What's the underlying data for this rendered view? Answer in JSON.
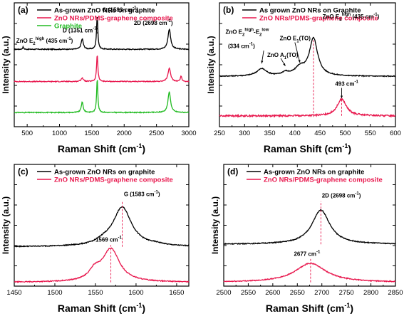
{
  "chart_data": [
    {
      "type": "line",
      "panel_label": "(a)",
      "xlabel": "Raman Shift (cm-1)",
      "ylabel": "Intensity (a.u.)",
      "xlim": [
        300,
        3000
      ],
      "xticks": [
        500,
        1000,
        1500,
        2000,
        2500,
        3000
      ],
      "legend_position": "top-left",
      "series": [
        {
          "name": "As-grown ZnO NRs on graphite",
          "color": "#000000",
          "offset": 3.0,
          "peaks": [
            [
              437,
              0.09,
              10
            ],
            [
              1351,
              0.4,
              20
            ],
            [
              1583,
              1.32,
              12
            ],
            [
              2698,
              0.78,
              25
            ]
          ]
        },
        {
          "name": "ZnO NRs/PDMS-graphene composite",
          "color": "#e8174d",
          "offset": 1.75,
          "peaks": [
            [
              1350,
              0.14,
              20
            ],
            [
              1583,
              1.04,
              12
            ],
            [
              2698,
              0.5,
              25
            ],
            [
              2880,
              0.22,
              12
            ]
          ]
        },
        {
          "name": "Graphite",
          "color": "#22bb22",
          "offset": 0.55,
          "peaks": [
            [
              1351,
              0.4,
              18
            ],
            [
              1583,
              1.33,
              11
            ],
            [
              2698,
              0.8,
              24
            ]
          ]
        }
      ],
      "annotations": [
        {
          "text": "ZnO E",
          "sub": "2",
          "sup": "high",
          "suffix": " (435 cm",
          "sup2": "-1",
          "tail": ")",
          "x": 330,
          "yv": 3.25
        },
        {
          "text": "D (1351 cm",
          "sup": "-1",
          "suffix": ")",
          "x": 1050,
          "yv": 3.65
        },
        {
          "text": "G (1583 cm",
          "sup": "-1",
          "suffix": ")",
          "x": 1660,
          "yv": 4.45
        },
        {
          "text": "2D (2698 cm",
          "sup": "-1",
          "suffix": ")",
          "x": 2150,
          "yv": 3.95
        }
      ],
      "ylim": [
        0,
        4.8
      ]
    },
    {
      "type": "line",
      "panel_label": "(b)",
      "xlabel": "Raman Shift (cm-1)",
      "ylabel": "Intensity (a.u.)",
      "xlim": [
        250,
        600
      ],
      "xticks": [
        250,
        300,
        350,
        400,
        450,
        500,
        550,
        600
      ],
      "legend_position": "top-left",
      "series": [
        {
          "name": "As grown ZnO NRs on Graphite",
          "color": "#000000",
          "offset": 1.95,
          "peaks": [
            [
              334,
              0.28,
              12
            ],
            [
              381,
              0.12,
              8
            ],
            [
              410,
              0.3,
              12
            ],
            [
              437,
              1.45,
              10
            ]
          ]
        },
        {
          "name": "ZnO NRs/PDMS-graphene composite",
          "color": "#e8174d",
          "offset": 0.42,
          "peaks": [
            [
              493,
              0.65,
              11
            ]
          ],
          "noise": 0.06
        }
      ],
      "annotations": [
        {
          "text": "ZnO E",
          "sub": "2",
          "sup": "high",
          "suffix": "-E",
          "sub2": "2",
          "sup2": "low",
          "x": 262,
          "yv": 3.6
        },
        {
          "text": "(334 cm",
          "sup": "-1",
          "suffix": ")",
          "x": 267,
          "yv": 3.05
        },
        {
          "text": "ZnO A",
          "sub": "1",
          "suffix": "(TO)",
          "x": 345,
          "yv": 2.7
        },
        {
          "text": "ZnO E",
          "sub": "1",
          "suffix": "(TO)",
          "x": 370,
          "yv": 3.35
        },
        {
          "text": "ZnO E",
          "sub": "2",
          "sup": "high",
          "suffix": " (435 cm",
          "sup2": "-1",
          "tail": ")",
          "x": 455,
          "yv": 4.2
        },
        {
          "text": "493 cm",
          "sup": "-1",
          "x": 480,
          "yv": 1.58
        }
      ],
      "vlines": [
        {
          "x": 437,
          "from": 0.38,
          "to": 3.4
        },
        {
          "x": 493,
          "from": 0.42,
          "to": 1.05
        }
      ],
      "ylim": [
        0,
        4.8
      ]
    },
    {
      "type": "line",
      "panel_label": "(c)",
      "xlabel": "Raman Shift (cm-1)",
      "ylabel": "Intensity (a.u.)",
      "xlim": [
        1450,
        1665
      ],
      "xticks": [
        1450,
        1500,
        1550,
        1600,
        1650
      ],
      "legend_position": "top-left",
      "series": [
        {
          "name": "As-grown ZnO NRs on graphite",
          "color": "#000000",
          "offset": 1.55,
          "peaks": [
            [
              1583,
              1.55,
              14
            ],
            [
              1560,
              0.12,
              10
            ],
            [
              1625,
              0.05,
              10
            ]
          ]
        },
        {
          "name": "ZnO NRs/PDMS-graphene composite",
          "color": "#e8174d",
          "offset": 0.15,
          "peaks": [
            [
              1569,
              1.3,
              13
            ],
            [
              1549,
              0.35,
              8
            ]
          ]
        }
      ],
      "annotations": [
        {
          "text": "G (1583 cm",
          "sup": "-1",
          "suffix": ")",
          "x": 1585,
          "yv": 3.55
        },
        {
          "text": "1569 cm",
          "sup": "-1",
          "x": 1550,
          "yv": 1.75
        }
      ],
      "vlines": [
        {
          "x": 1583,
          "from": 1.55,
          "to": 3.35
        },
        {
          "x": 1569,
          "from": 0.15,
          "to": 1.62
        }
      ],
      "ylim": [
        0,
        4.8
      ]
    },
    {
      "type": "line",
      "panel_label": "(d)",
      "xlabel": "Raman Shift (cm-1)",
      "ylabel": "Intensity (a.u.)",
      "xlim": [
        2500,
        2850
      ],
      "xticks": [
        2500,
        2550,
        2600,
        2650,
        2700,
        2750,
        2800,
        2850
      ],
      "legend_position": "top-left",
      "series": [
        {
          "name": "As-grown ZnO NRs on graphite",
          "color": "#000000",
          "offset": 1.65,
          "peaks": [
            [
              2698,
              1.35,
              22
            ]
          ]
        },
        {
          "name": "ZnO NRs/PDMS-graphene composite",
          "color": "#e8174d",
          "offset": 0.15,
          "peaks": [
            [
              2677,
              0.75,
              38
            ]
          ]
        }
      ],
      "annotations": [
        {
          "text": "2D (2698 cm",
          "sup": "-1",
          "suffix": ")",
          "x": 2700,
          "yv": 3.5
        },
        {
          "text": "2677 cm",
          "sup": "-1",
          "x": 2643,
          "yv": 1.2
        }
      ],
      "vlines": [
        {
          "x": 2698,
          "from": 1.65,
          "to": 3.35
        },
        {
          "x": 2677,
          "from": 0.15,
          "to": 1.07
        }
      ],
      "ylim": [
        0,
        4.8
      ]
    }
  ]
}
